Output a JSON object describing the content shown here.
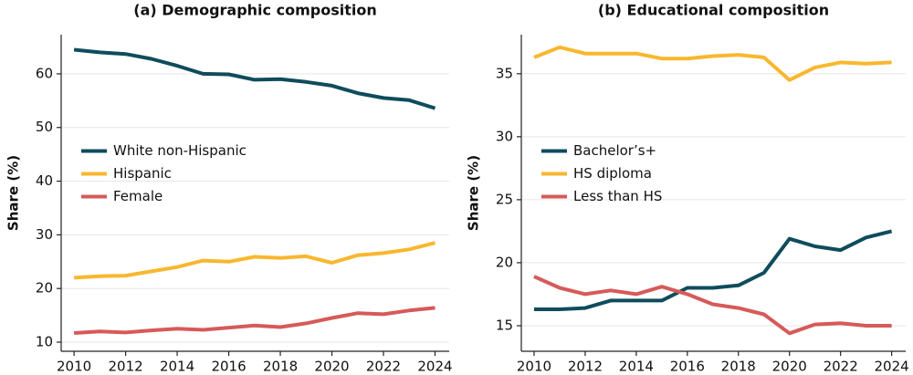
{
  "chart_data": [
    {
      "type": "line",
      "title": "(a) Demographic composition",
      "y_label": "Share (%)",
      "x": [
        2010,
        2011,
        2012,
        2013,
        2014,
        2015,
        2016,
        2017,
        2018,
        2019,
        2020,
        2021,
        2022,
        2023,
        2024
      ],
      "series": [
        {
          "name": "White non-Hispanic",
          "color": "#0f4c5c",
          "values": [
            64.5,
            64.0,
            63.7,
            62.8,
            61.5,
            60.0,
            59.9,
            58.9,
            59.0,
            58.5,
            57.8,
            56.4,
            55.5,
            55.1,
            53.6
          ]
        },
        {
          "name": "Hispanic",
          "color": "#f8b72f",
          "values": [
            22.0,
            22.3,
            22.4,
            23.2,
            24.0,
            25.2,
            25.0,
            25.9,
            25.7,
            26.0,
            24.8,
            26.2,
            26.6,
            27.3,
            28.5
          ]
        },
        {
          "name": "Female",
          "color": "#d65a5a",
          "values": [
            11.7,
            12.0,
            11.8,
            12.2,
            12.5,
            12.3,
            12.7,
            13.1,
            12.8,
            13.5,
            14.5,
            15.4,
            15.2,
            15.9,
            16.4
          ]
        }
      ],
      "xlim": [
        2009.5,
        2024.55
      ],
      "xticks": [
        2010,
        2012,
        2014,
        2016,
        2018,
        2020,
        2022,
        2024
      ],
      "ylim": [
        8.3,
        67.3
      ],
      "yticks": [
        10,
        20,
        30,
        40,
        50,
        60
      ],
      "grid": true,
      "legend": "center left"
    },
    {
      "type": "line",
      "title": "(b) Educational composition",
      "y_label": "Share (%)",
      "x": [
        2010,
        2011,
        2012,
        2013,
        2014,
        2015,
        2016,
        2017,
        2018,
        2019,
        2020,
        2021,
        2022,
        2023,
        2024
      ],
      "series": [
        {
          "name": "Bachelor’s+",
          "color": "#0f4c5c",
          "values": [
            16.3,
            16.3,
            16.4,
            17.0,
            17.0,
            17.0,
            18.0,
            18.0,
            18.2,
            19.2,
            21.9,
            21.3,
            21.0,
            22.0,
            22.5
          ]
        },
        {
          "name": "HS diploma",
          "color": "#f8b72f",
          "values": [
            36.3,
            37.1,
            36.6,
            36.6,
            36.6,
            36.2,
            36.2,
            36.4,
            36.5,
            36.3,
            34.5,
            35.5,
            35.9,
            35.8,
            35.9
          ]
        },
        {
          "name": "Less than HS",
          "color": "#d65a5a",
          "values": [
            18.9,
            18.0,
            17.5,
            17.8,
            17.5,
            18.1,
            17.5,
            16.7,
            16.4,
            15.9,
            14.4,
            15.1,
            15.2,
            15.0,
            15.0
          ]
        }
      ],
      "xlim": [
        2009.5,
        2024.55
      ],
      "xticks": [
        2010,
        2012,
        2014,
        2016,
        2018,
        2020,
        2022,
        2024
      ],
      "ylim": [
        12.97,
        38.1
      ],
      "yticks": [
        15,
        20,
        25,
        30,
        35
      ],
      "grid": true,
      "legend": "center left"
    }
  ]
}
